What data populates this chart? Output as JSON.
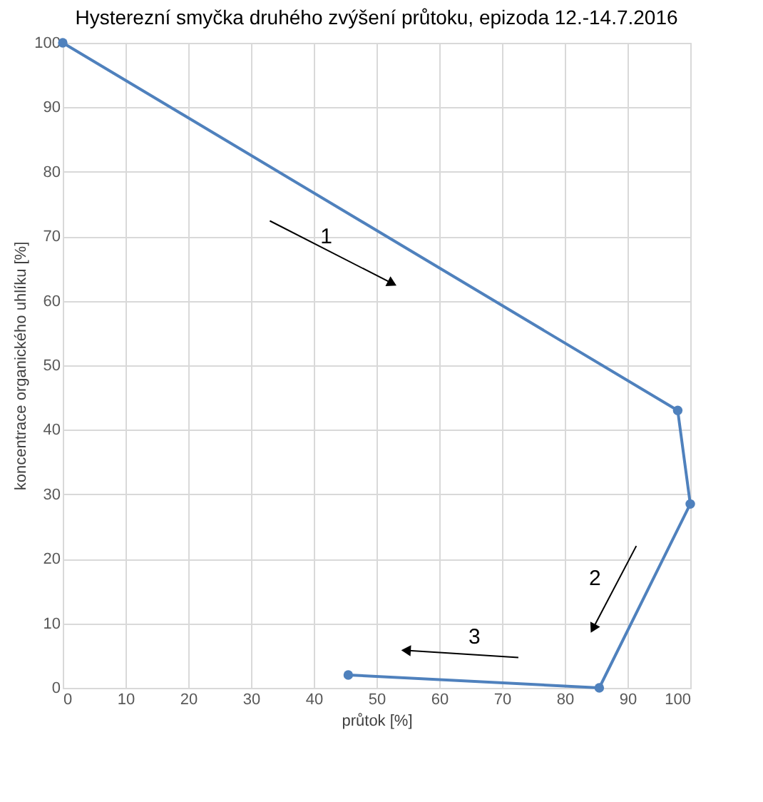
{
  "chart_data": {
    "type": "line",
    "title": "Hysterezní smyčka druhého zvýšení průtoku, epizoda 12.-14.7.2016",
    "xlabel": "průtok [%]",
    "ylabel": "koncentrace organického uhlíku [%]",
    "x": [
      0,
      98,
      100,
      85.5,
      45.5
    ],
    "series": [
      {
        "color": "#4f81bd",
        "values": [
          100,
          43,
          28.5,
          0,
          2
        ]
      }
    ],
    "xlim": [
      0,
      100
    ],
    "ylim": [
      0,
      100
    ],
    "xticks": [
      0,
      10,
      20,
      30,
      40,
      50,
      60,
      70,
      80,
      90,
      100
    ],
    "yticks": [
      0,
      10,
      20,
      30,
      40,
      50,
      60,
      70,
      80,
      90,
      100
    ],
    "grid": true,
    "marker": "circle",
    "line_style": "solid",
    "annotations": [
      "1",
      "2",
      "3"
    ]
  }
}
